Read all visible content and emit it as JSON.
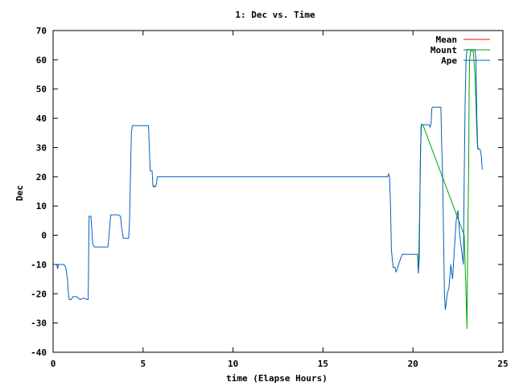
{
  "chart_data": {
    "type": "line",
    "title": "1: Dec vs. Time",
    "xlabel": "time (Elapse Hours)",
    "ylabel": "Dec",
    "xlim": [
      0,
      25
    ],
    "ylim": [
      -40,
      70
    ],
    "xticks": [
      0,
      5,
      10,
      15,
      20,
      25
    ],
    "yticks": [
      -40,
      -30,
      -20,
      -10,
      0,
      10,
      20,
      30,
      40,
      50,
      60,
      70
    ],
    "grid": false,
    "legend_position": "top-right",
    "series": [
      {
        "name": "Mean",
        "color": "#ff0000",
        "x": [
          5.55,
          5.6,
          5.65,
          5.7
        ],
        "y": [
          16.8,
          16.6,
          16.6,
          16.8
        ]
      },
      {
        "name": "Mount",
        "color": "#00a000",
        "x": [
          20.3,
          20.38,
          20.42,
          20.48,
          20.55,
          22.85,
          22.9,
          22.95,
          23.0,
          23.02,
          23.05,
          23.1,
          23.12,
          23.15,
          23.2,
          23.35,
          23.45,
          23.5,
          23.55,
          23.6,
          23.65
        ],
        "y": [
          -13,
          10,
          30,
          38,
          37.8,
          0,
          -10,
          -20,
          -32,
          -20,
          0,
          25,
          50,
          60,
          63,
          63,
          55,
          45,
          35,
          29.5,
          29.5
        ]
      },
      {
        "name": "Ape",
        "color": "#0060c0",
        "x": [
          0,
          0.2,
          0.25,
          0.3,
          0.4,
          0.5,
          0.6,
          0.7,
          0.8,
          0.85,
          0.9,
          1.0,
          1.1,
          1.3,
          1.5,
          1.7,
          1.9,
          1.95,
          2.0,
          2.05,
          2.1,
          2.15,
          2.2,
          2.3,
          2.5,
          2.7,
          2.9,
          3.0,
          3.05,
          3.2,
          3.4,
          3.6,
          3.75,
          3.8,
          3.9,
          4.0,
          4.1,
          4.2,
          4.25,
          4.3,
          4.35,
          4.4,
          4.5,
          5.0,
          5.2,
          5.3,
          5.35,
          5.4,
          5.5,
          5.55,
          5.6,
          5.7,
          5.75,
          5.8,
          5.9,
          6.5,
          10,
          15,
          18.5,
          18.6,
          18.65,
          18.7,
          18.75,
          18.8,
          18.9,
          19.0,
          19.05,
          19.1,
          19.2,
          19.4,
          19.6,
          20.0,
          20.2,
          20.25,
          20.3,
          20.35,
          20.4,
          20.45,
          20.5,
          20.6,
          20.9,
          20.95,
          21.0,
          21.05,
          21.1,
          21.2,
          21.5,
          21.55,
          21.6,
          21.65,
          21.7,
          21.75,
          21.8,
          21.85,
          21.9,
          22.0,
          22.1,
          22.2,
          22.3,
          22.4,
          22.5,
          22.6,
          22.7,
          22.8,
          22.85,
          22.9,
          22.95,
          23.0,
          23.05,
          23.1,
          23.15,
          23.2,
          23.4,
          23.45,
          23.5,
          23.55,
          23.6,
          23.65,
          23.7,
          23.75,
          23.8,
          23.85
        ],
        "y": [
          -10,
          -10,
          -11.5,
          -10,
          -10,
          -10,
          -10,
          -11,
          -15,
          -20,
          -22,
          -22,
          -21,
          -21,
          -22,
          -21.5,
          -22,
          -22,
          6.5,
          6.5,
          6.5,
          2,
          -3,
          -4,
          -4,
          -4,
          -4,
          -4,
          -4,
          7,
          7,
          7,
          6.5,
          3,
          -1,
          -1,
          -1,
          -1,
          5,
          20,
          35,
          37.5,
          37.5,
          37.5,
          37.5,
          37.5,
          30,
          22,
          22,
          16.8,
          16.8,
          16.8,
          18,
          20,
          20,
          20,
          20,
          20,
          20,
          20,
          21,
          20,
          10,
          -5,
          -11,
          -11,
          -12.5,
          -12,
          -10,
          -6.5,
          -6.5,
          -6.5,
          -6.5,
          -6.5,
          -13,
          -8,
          20,
          37.5,
          37.8,
          37.8,
          37.8,
          37,
          38,
          43.5,
          43.8,
          43.8,
          43.8,
          43.8,
          30,
          20,
          0,
          -20,
          -25.5,
          -23,
          -20,
          -18,
          -10,
          -15,
          -5,
          5,
          8.5,
          0,
          -5,
          -10,
          20,
          45,
          60,
          63.5,
          63.5,
          63.5,
          63.5,
          63.5,
          63.5,
          63.5,
          60,
          40,
          30,
          29.5,
          29.5,
          29,
          27,
          22.5
        ]
      }
    ]
  }
}
